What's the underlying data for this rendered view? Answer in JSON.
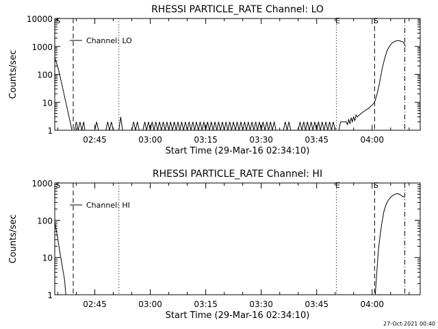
{
  "timestamp": "27-Oct-2021 00:40",
  "chart_data": [
    {
      "type": "line",
      "title": "RHESSI PARTICLE_RATE Channel: LO",
      "xlabel": "Start Time (29-Mar-16 02:34:10)",
      "ylabel": "Counts/sec",
      "yscale": "log",
      "xlim": [
        "02:34:10",
        "04:13:00"
      ],
      "ylim": [
        1,
        10000
      ],
      "xticks": [
        "02:45",
        "03:00",
        "03:15",
        "03:30",
        "03:45",
        "04:00"
      ],
      "yticks": [
        "1",
        "10",
        "100",
        "1000",
        "10000"
      ],
      "legend": {
        "label": "Channel: LO",
        "placement": "top-left"
      },
      "markers": [
        {
          "label": "S",
          "time": "02:34:40",
          "style": "none"
        },
        {
          "time": "02:39:10",
          "style": "dashed"
        },
        {
          "time": "02:51:30",
          "style": "dotted"
        },
        {
          "label": "E",
          "time": "03:50:20",
          "style": "dotted"
        },
        {
          "label": "S",
          "time": "04:00:40",
          "style": "dashed"
        },
        {
          "time": "04:08:50",
          "style": "dashdot"
        }
      ],
      "series": [
        {
          "points": [
            [
              "02:34:10",
              400
            ],
            [
              "02:35:10",
              150
            ],
            [
              "02:36:10",
              40
            ],
            [
              "02:37:10",
              10
            ],
            [
              "02:38:10",
              2.5
            ],
            [
              "02:38:50",
              1
            ],
            [
              "02:39:30",
              1
            ],
            [
              "02:40:00",
              2
            ],
            [
              "02:40:30",
              1
            ],
            [
              "02:41:00",
              2
            ],
            [
              "02:41:30",
              1
            ],
            [
              "02:42:00",
              2
            ],
            [
              "02:42:20",
              1
            ],
            [
              "02:45:00",
              1
            ],
            [
              "02:45:30",
              2
            ],
            [
              "02:46:00",
              1
            ],
            [
              "02:48:00",
              1
            ],
            [
              "02:48:30",
              2
            ],
            [
              "02:49:00",
              1
            ],
            [
              "02:49:30",
              2
            ],
            [
              "02:50:00",
              1
            ],
            [
              "02:51:30",
              1
            ],
            [
              "02:52:00",
              3
            ],
            [
              "02:52:30",
              1
            ],
            [
              "02:55:00",
              1
            ],
            [
              "02:55:30",
              2
            ],
            [
              "02:56:00",
              1
            ],
            [
              "02:56:30",
              2
            ],
            [
              "02:57:00",
              1
            ],
            [
              "02:58:00",
              1
            ],
            [
              "02:58:30",
              2
            ],
            [
              "02:59:00",
              1
            ],
            [
              "02:59:30",
              2
            ],
            [
              "03:00:00",
              1
            ],
            [
              "03:00:30",
              2
            ],
            [
              "03:01:00",
              1
            ],
            [
              "03:01:30",
              2
            ],
            [
              "03:02:00",
              1
            ],
            [
              "03:02:30",
              2
            ],
            [
              "03:03:00",
              1
            ],
            [
              "03:03:30",
              2
            ],
            [
              "03:04:00",
              1
            ],
            [
              "03:04:30",
              2
            ],
            [
              "03:05:00",
              1
            ],
            [
              "03:05:30",
              2
            ],
            [
              "03:06:00",
              1
            ],
            [
              "03:06:30",
              2
            ],
            [
              "03:07:00",
              1
            ],
            [
              "03:07:30",
              2
            ],
            [
              "03:08:00",
              1
            ],
            [
              "03:08:30",
              2
            ],
            [
              "03:09:00",
              1
            ],
            [
              "03:09:30",
              2
            ],
            [
              "03:10:00",
              1
            ],
            [
              "03:10:30",
              2
            ],
            [
              "03:11:00",
              1
            ],
            [
              "03:11:30",
              2
            ],
            [
              "03:12:00",
              1
            ],
            [
              "03:12:30",
              2
            ],
            [
              "03:13:00",
              1
            ],
            [
              "03:13:30",
              2
            ],
            [
              "03:14:00",
              1
            ],
            [
              "03:14:30",
              2
            ],
            [
              "03:15:00",
              1
            ],
            [
              "03:15:30",
              2
            ],
            [
              "03:16:00",
              1
            ],
            [
              "03:16:30",
              2
            ],
            [
              "03:17:00",
              1
            ],
            [
              "03:17:30",
              2
            ],
            [
              "03:18:00",
              1
            ],
            [
              "03:18:30",
              2
            ],
            [
              "03:19:00",
              1
            ],
            [
              "03:19:30",
              2
            ],
            [
              "03:20:00",
              1
            ],
            [
              "03:20:30",
              2
            ],
            [
              "03:21:00",
              1
            ],
            [
              "03:21:30",
              2
            ],
            [
              "03:22:00",
              1
            ],
            [
              "03:22:30",
              2
            ],
            [
              "03:23:00",
              1
            ],
            [
              "03:23:30",
              2
            ],
            [
              "03:24:00",
              1
            ],
            [
              "03:24:30",
              2
            ],
            [
              "03:25:00",
              1
            ],
            [
              "03:25:30",
              2
            ],
            [
              "03:26:00",
              1
            ],
            [
              "03:26:30",
              2
            ],
            [
              "03:27:00",
              1
            ],
            [
              "03:27:30",
              2
            ],
            [
              "03:28:00",
              1
            ],
            [
              "03:28:30",
              2
            ],
            [
              "03:29:00",
              1
            ],
            [
              "03:29:30",
              2
            ],
            [
              "03:30:00",
              1
            ],
            [
              "03:30:30",
              2
            ],
            [
              "03:31:00",
              1
            ],
            [
              "03:31:30",
              2
            ],
            [
              "03:32:00",
              1
            ],
            [
              "03:32:30",
              2
            ],
            [
              "03:33:00",
              1
            ],
            [
              "03:33:30",
              2
            ],
            [
              "03:34:00",
              1
            ],
            [
              "03:36:00",
              1
            ],
            [
              "03:36:30",
              2
            ],
            [
              "03:37:00",
              1
            ],
            [
              "03:37:30",
              2
            ],
            [
              "03:38:00",
              1
            ],
            [
              "03:40:00",
              1
            ],
            [
              "03:40:30",
              2
            ],
            [
              "03:41:00",
              1
            ],
            [
              "03:41:30",
              2
            ],
            [
              "03:42:00",
              1
            ],
            [
              "03:42:30",
              2
            ],
            [
              "03:43:00",
              1
            ],
            [
              "03:43:30",
              2
            ],
            [
              "03:44:00",
              1
            ],
            [
              "03:44:30",
              2
            ],
            [
              "03:45:00",
              1
            ],
            [
              "03:45:30",
              2
            ],
            [
              "03:46:00",
              1
            ],
            [
              "03:46:30",
              2
            ],
            [
              "03:47:00",
              1
            ],
            [
              "03:47:30",
              2
            ],
            [
              "03:48:00",
              1
            ],
            [
              "03:48:30",
              2
            ],
            [
              "03:49:00",
              1
            ],
            [
              "03:49:30",
              2
            ],
            [
              "03:50:00",
              1
            ],
            [
              "03:51:00",
              1
            ],
            [
              "03:51:30",
              2
            ],
            [
              "03:52:00",
              2
            ],
            [
              "03:53:00",
              2
            ],
            [
              "03:53:20",
              1.6
            ],
            [
              "03:53:40",
              2.4
            ],
            [
              "03:54:00",
              1.7
            ],
            [
              "03:54:20",
              2.8
            ],
            [
              "03:54:40",
              2
            ],
            [
              "03:55:00",
              3
            ],
            [
              "03:55:20",
              2.2
            ],
            [
              "03:55:40",
              3.5
            ],
            [
              "03:56:00",
              3
            ],
            [
              "03:57:00",
              4
            ],
            [
              "03:58:00",
              5
            ],
            [
              "03:59:00",
              6
            ],
            [
              "04:00:00",
              8
            ],
            [
              "04:00:40",
              10
            ],
            [
              "04:01:20",
              20
            ],
            [
              "04:02:00",
              50
            ],
            [
              "04:02:40",
              150
            ],
            [
              "04:03:20",
              350
            ],
            [
              "04:04:00",
              700
            ],
            [
              "04:04:40",
              1000
            ],
            [
              "04:05:20",
              1300
            ],
            [
              "04:06:00",
              1500
            ],
            [
              "04:06:40",
              1600
            ],
            [
              "04:07:20",
              1600
            ],
            [
              "04:08:00",
              1500
            ],
            [
              "04:08:30",
              1400
            ],
            [
              "04:09:00",
              1000
            ]
          ]
        }
      ]
    },
    {
      "type": "line",
      "title": "RHESSI PARTICLE_RATE Channel: HI",
      "xlabel": "Start Time (29-Mar-16 02:34:10)",
      "ylabel": "Counts/sec",
      "yscale": "log",
      "xlim": [
        "02:34:10",
        "04:13:00"
      ],
      "ylim": [
        1,
        1000
      ],
      "xticks": [
        "02:45",
        "03:00",
        "03:15",
        "03:30",
        "03:45",
        "04:00"
      ],
      "yticks": [
        "1",
        "10",
        "100",
        "1000"
      ],
      "legend": {
        "label": "Channel: HI",
        "placement": "top-left"
      },
      "markers": [
        {
          "label": "S",
          "time": "02:34:40",
          "style": "none"
        },
        {
          "time": "02:39:10",
          "style": "dashed"
        },
        {
          "time": "02:51:30",
          "style": "dotted"
        },
        {
          "label": "E",
          "time": "03:50:20",
          "style": "dotted"
        },
        {
          "label": "S",
          "time": "04:00:40",
          "style": "dashed"
        },
        {
          "time": "04:08:50",
          "style": "dashdot"
        }
      ],
      "series": [
        {
          "points": [
            [
              "02:34:10",
              90
            ],
            [
              "02:34:50",
              40
            ],
            [
              "02:35:30",
              15
            ],
            [
              "02:36:10",
              6
            ],
            [
              "02:36:50",
              2.5
            ],
            [
              "02:37:10",
              1
            ],
            [
              "04:00:50",
              1
            ],
            [
              "04:01:10",
              3
            ],
            [
              "04:01:40",
              15
            ],
            [
              "04:02:10",
              40
            ],
            [
              "04:02:40",
              90
            ],
            [
              "04:03:10",
              170
            ],
            [
              "04:03:40",
              250
            ],
            [
              "04:04:10",
              320
            ],
            [
              "04:04:40",
              380
            ],
            [
              "04:05:10",
              430
            ],
            [
              "04:05:40",
              470
            ],
            [
              "04:06:10",
              500
            ],
            [
              "04:06:40",
              520
            ],
            [
              "04:07:10",
              510
            ],
            [
              "04:07:40",
              480
            ],
            [
              "04:08:10",
              440
            ],
            [
              "04:08:40",
              420
            ]
          ]
        }
      ]
    }
  ]
}
